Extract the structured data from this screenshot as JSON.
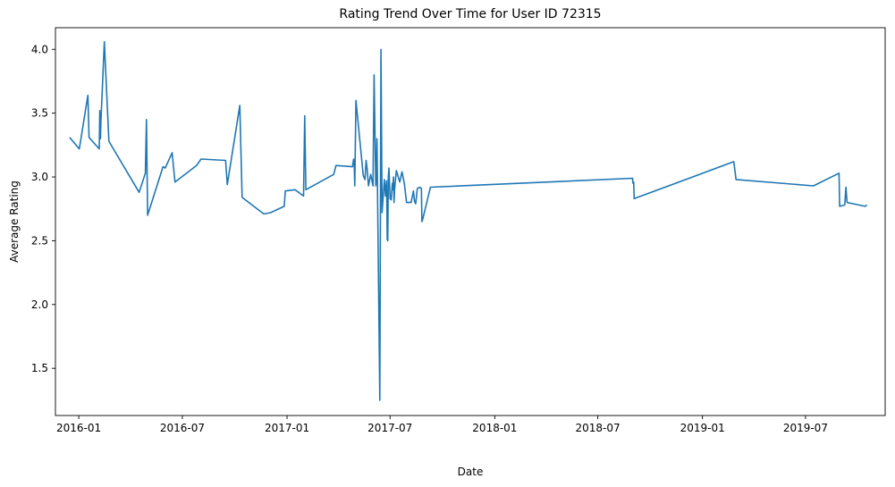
{
  "chart_data": {
    "type": "line",
    "title": "Rating Trend Over Time for User ID 72315",
    "xlabel": "Date",
    "ylabel": "Average Rating",
    "xlim": [
      "2015-11-21",
      "2019-11-18"
    ],
    "ylim": [
      1.13,
      4.17
    ],
    "x_ticks": [
      "2016-01",
      "2016-07",
      "2017-01",
      "2017-07",
      "2018-01",
      "2018-07",
      "2019-01",
      "2019-07"
    ],
    "y_ticks": [
      "1.5",
      "2.0",
      "2.5",
      "3.0",
      "3.5",
      "4.0"
    ],
    "grid": false,
    "legend": "none",
    "color": "#1f77b4",
    "series": [
      {
        "x": [
          "2015-12-16",
          "2016-01-02",
          "2016-01-17",
          "2016-01-19",
          "2016-02-06",
          "2016-02-07",
          "2016-02-08",
          "2016-02-09",
          "2016-02-15",
          "2016-02-23",
          "2016-04-16",
          "2016-04-27",
          "2016-04-29",
          "2016-05-01",
          "2016-05-28",
          "2016-06-01",
          "2016-06-13",
          "2016-06-18",
          "2016-07-26",
          "2016-08-03",
          "2016-09-15",
          "2016-09-18",
          "2016-10-10",
          "2016-10-14",
          "2016-11-21",
          "2016-12-03",
          "2016-12-27",
          "2016-12-29",
          "2017-01-15",
          "2017-01-30",
          "2017-02-01",
          "2017-02-03",
          "2017-03-24",
          "2017-03-28",
          "2017-04-26",
          "2017-04-28",
          "2017-04-29",
          "2017-04-30",
          "2017-05-02",
          "2017-05-15",
          "2017-05-18",
          "2017-05-20",
          "2017-05-22",
          "2017-05-24",
          "2017-05-28",
          "2017-06-01",
          "2017-06-03",
          "2017-06-06",
          "2017-06-07",
          "2017-06-08",
          "2017-06-13",
          "2017-06-15",
          "2017-06-17",
          "2017-06-19",
          "2017-06-21",
          "2017-06-23",
          "2017-06-25",
          "2017-06-26",
          "2017-06-27",
          "2017-06-28",
          "2017-06-29",
          "2017-07-01",
          "2017-07-03",
          "2017-07-05",
          "2017-07-06",
          "2017-07-07",
          "2017-07-08",
          "2017-07-09",
          "2017-07-12",
          "2017-07-18",
          "2017-07-22",
          "2017-07-26",
          "2017-07-30",
          "2017-08-07",
          "2017-08-11",
          "2017-08-13",
          "2017-08-15",
          "2017-08-18",
          "2017-08-22",
          "2017-08-25",
          "2017-08-26",
          "2017-08-27",
          "2017-09-10",
          "2018-08-31",
          "2018-09-01",
          "2018-09-02",
          "2018-09-03",
          "2019-02-25",
          "2019-03-01",
          "2019-07-15",
          "2019-08-29",
          "2019-08-30",
          "2019-09-08",
          "2019-09-10",
          "2019-09-12",
          "2019-10-14",
          "2019-10-17"
        ],
        "y": [
          3.31,
          3.22,
          3.64,
          3.31,
          3.22,
          3.52,
          3.3,
          3.44,
          4.06,
          3.28,
          2.88,
          3.03,
          3.45,
          2.7,
          3.08,
          3.07,
          3.19,
          2.96,
          3.09,
          3.14,
          3.13,
          2.94,
          3.56,
          2.84,
          2.71,
          2.72,
          2.77,
          2.89,
          2.9,
          2.85,
          3.48,
          2.9,
          3.02,
          3.09,
          3.08,
          3.14,
          3.08,
          2.93,
          3.6,
          3.01,
          2.98,
          3.13,
          3.05,
          2.93,
          3.02,
          2.93,
          3.8,
          2.93,
          3.02,
          3.3,
          1.25,
          4.0,
          2.72,
          2.85,
          2.98,
          2.85,
          2.97,
          2.51,
          2.5,
          3.0,
          3.07,
          2.83,
          2.82,
          2.95,
          2.9,
          3.0,
          2.8,
          2.9,
          3.05,
          2.96,
          3.04,
          2.95,
          2.8,
          2.8,
          2.89,
          2.81,
          2.79,
          2.91,
          2.92,
          2.91,
          2.65,
          2.66,
          2.92,
          2.99,
          2.95,
          2.96,
          2.83,
          3.12,
          2.98,
          2.93,
          3.03,
          2.77,
          2.78,
          2.92,
          2.8,
          2.77,
          2.78
        ]
      }
    ]
  }
}
